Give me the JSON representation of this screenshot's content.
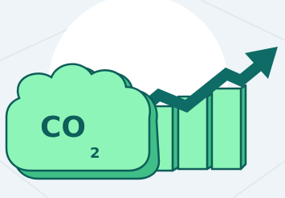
{
  "label": "CO",
  "subscript": "2"
}
